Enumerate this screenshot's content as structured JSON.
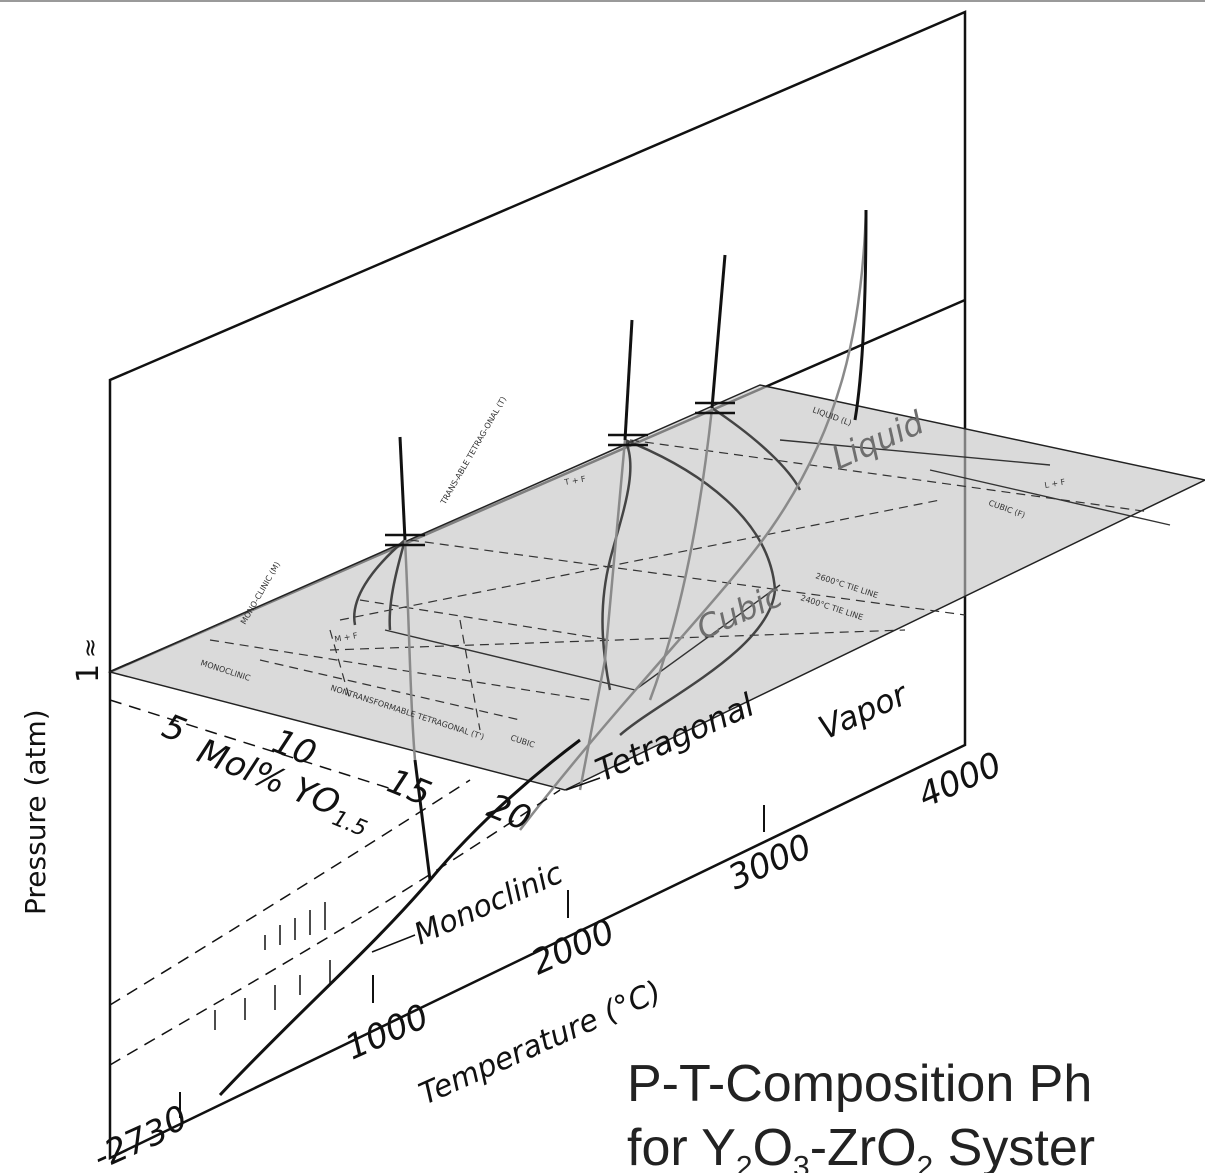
{
  "axes": {
    "pressure_label": "Pressure (atm)",
    "pressure_tick": "1",
    "pressure_approx": "≈",
    "temperature_label": "Temperature (°C)",
    "temperature_ticks": [
      "-273",
      "0",
      "1000",
      "2000",
      "3000",
      "4000"
    ],
    "composition_label": "Mol% YO",
    "composition_subscript": "1.5",
    "composition_ticks": [
      "5",
      "10",
      "15",
      "20"
    ]
  },
  "regions": {
    "monoclinic": "Monoclinic",
    "tetragonal": "Tetragonal",
    "cubic": "Cubic",
    "liquid": "Liquid",
    "vapor": "Vapor"
  },
  "plane_labels": {
    "liquid": "LIQUID (L)",
    "cubic": "CUBIC (F)",
    "l_plus_f": "L + F",
    "t_plus_f": "T + F",
    "transformable_tetragonal": "TRANS-ABLE TETRAG-ONAL (T)",
    "monoclinic_phase": "MONO-CLINIC (M)",
    "m_plus_f": "M + F",
    "tie_line_2600": "2600°C TIE LINE",
    "tie_line_2400": "2400°C TIE LINE",
    "monoclinic_bracket": "MONOCLINIC",
    "nontransformable": "NONTRANSFORMABLE TETRAGONAL (T')",
    "cubic_bracket": "CUBIC"
  },
  "caption": {
    "line1": "P-T-Composition Ph",
    "line2": "for Y",
    "line2_sub1": "2",
    "line2_mid1": "O",
    "line2_sub2": "3",
    "line2_mid2": "-ZrO",
    "line2_sub3": "2",
    "line2_end": " Syster"
  }
}
